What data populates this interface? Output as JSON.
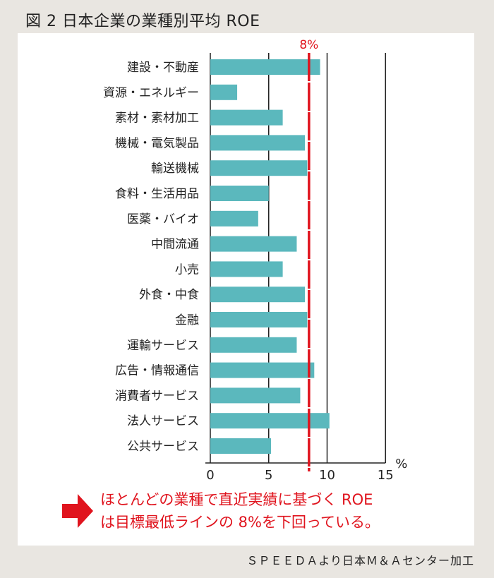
{
  "title": "図 2 日本企業の業種別平均 ROE",
  "chart_data": {
    "type": "bar",
    "orientation": "horizontal",
    "title": "図 2 日本企業の業種別平均 ROE",
    "xlabel": "%",
    "ylabel": "",
    "xlim": [
      0,
      15
    ],
    "xticks": [
      "0",
      "5",
      "10",
      "15"
    ],
    "grid": true,
    "categories": [
      "建設・不動産",
      "資源・エネルギー",
      "素材・素材加工",
      "機械・電気製品",
      "輸送機械",
      "食料・生活用品",
      "医薬・バイオ",
      "中間流通",
      "小売",
      "外食・中食",
      "金融",
      "運輸サービス",
      "広告・情報通信",
      "消費者サービス",
      "法人サービス",
      "公共サービス"
    ],
    "values": [
      9.4,
      2.3,
      6.2,
      8.1,
      8.3,
      5.0,
      4.1,
      7.4,
      6.2,
      8.1,
      8.3,
      7.4,
      8.9,
      7.7,
      10.2,
      5.2
    ],
    "reference_line": {
      "value": 8.45,
      "label": "8%",
      "color": "#e0141e",
      "style": "dashed"
    },
    "bar_color": "#5bb8bd"
  },
  "note": {
    "line1": "ほとんどの業種で直近実績に基づく ROE",
    "line2": "は目標最低ラインの 8%を下回っている。",
    "icon": "right-arrow-icon",
    "color": "#e0141e"
  },
  "source": "ＳＰＥＥＤＡより日本Ｍ＆Ａセンター加工"
}
